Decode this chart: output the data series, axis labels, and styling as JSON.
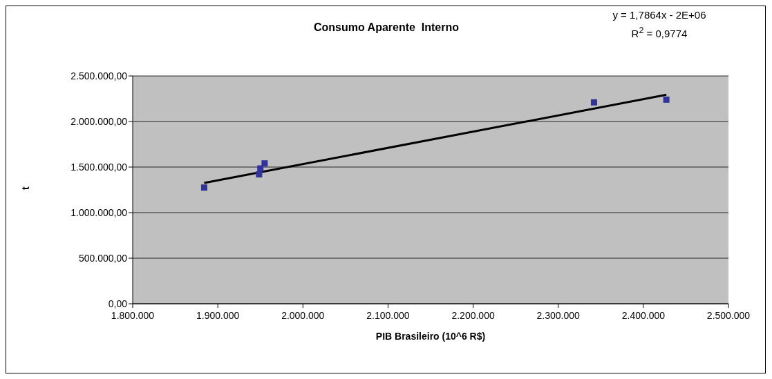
{
  "chart_data": {
    "type": "scatter",
    "title": "Consumo Aparente  Interno",
    "xlabel": "PIB Brasileiro (10^6 R$)",
    "ylabel": "t",
    "annotations": [
      "y = 1,7864x - 2E+06",
      "R$^{2}$ = 0,9774"
    ],
    "xlim": [
      1800000,
      2500000
    ],
    "xticks": [
      {
        "value": 1800000,
        "label": "1.800.000"
      },
      {
        "value": 1900000,
        "label": "1.900.000"
      },
      {
        "value": 2000000,
        "label": "2.000.000"
      },
      {
        "value": 2100000,
        "label": "2.100.000"
      },
      {
        "value": 2200000,
        "label": "2.200.000"
      },
      {
        "value": 2300000,
        "label": "2.300.000"
      },
      {
        "value": 2400000,
        "label": "2.400.000"
      },
      {
        "value": 2500000,
        "label": "2.500.000"
      }
    ],
    "ylim": [
      0,
      2500000
    ],
    "yticks": [
      {
        "value": 0,
        "label": "0,00"
      },
      {
        "value": 500000,
        "label": "500.000,00"
      },
      {
        "value": 1000000,
        "label": "1.000.000,00"
      },
      {
        "value": 1500000,
        "label": "1.500.000,00"
      },
      {
        "value": 2000000,
        "label": "2.000.000,00"
      },
      {
        "value": 2500000,
        "label": "2.500.000,00"
      }
    ],
    "grid": "y",
    "legend": false,
    "series": [
      {
        "color": "#333399",
        "marker": "square",
        "x": [
          1884000,
          1948500,
          1950000,
          1955000,
          2342000,
          2427000
        ],
        "values": [
          1275000,
          1420000,
          1485000,
          1540000,
          2210000,
          2240000
        ]
      },
      {
        "type": "line",
        "color": "#000000",
        "marker": "none",
        "line_style": "solid",
        "x": [
          1884000,
          2427000
        ],
        "values": [
          1326000,
          2293000
        ]
      }
    ]
  }
}
